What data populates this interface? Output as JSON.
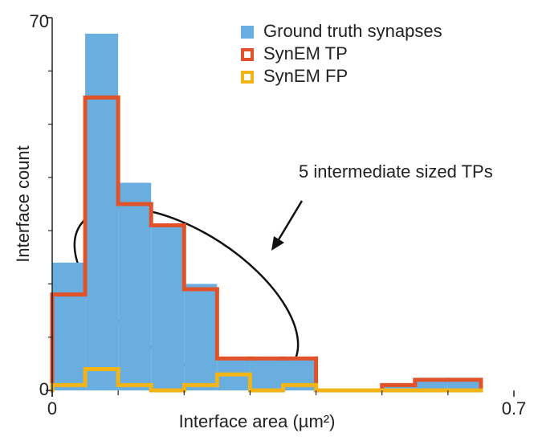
{
  "chart_data": {
    "type": "histogram",
    "xlabel": "Interface area (µm²)",
    "ylabel": "Interface count",
    "annotation": "5 intermediate sized TPs",
    "bins": [
      0,
      0.05,
      0.1,
      0.15,
      0.2,
      0.25,
      0.3,
      0.35,
      0.4,
      0.45,
      0.5,
      0.55,
      0.6,
      0.65
    ],
    "series": [
      {
        "name": "Ground truth synapses",
        "color": "#6aaee0",
        "style": "filled",
        "values": [
          24,
          67,
          39,
          31,
          20,
          6,
          6,
          6,
          0,
          0,
          1,
          2,
          2
        ]
      },
      {
        "name": "SynEM TP",
        "color": "#e0522a",
        "style": "step",
        "values": [
          18,
          55,
          35,
          31,
          19,
          6,
          6,
          6,
          0,
          0,
          1,
          2,
          2
        ]
      },
      {
        "name": "SynEM FP",
        "color": "#f2b417",
        "style": "step",
        "values": [
          1,
          4,
          1,
          0,
          1,
          3,
          0,
          1,
          0,
          0,
          0,
          0,
          0
        ]
      }
    ],
    "xlim": [
      0,
      0.7
    ],
    "ylim": [
      0,
      70
    ],
    "xticks": [
      0,
      0.7
    ],
    "yticks": [
      0,
      70
    ],
    "xminorticks": [
      0.1,
      0.2,
      0.3,
      0.4,
      0.5,
      0.6
    ],
    "yminorticks": [
      10,
      20,
      30,
      40,
      50,
      60
    ],
    "legend": "upper right"
  }
}
